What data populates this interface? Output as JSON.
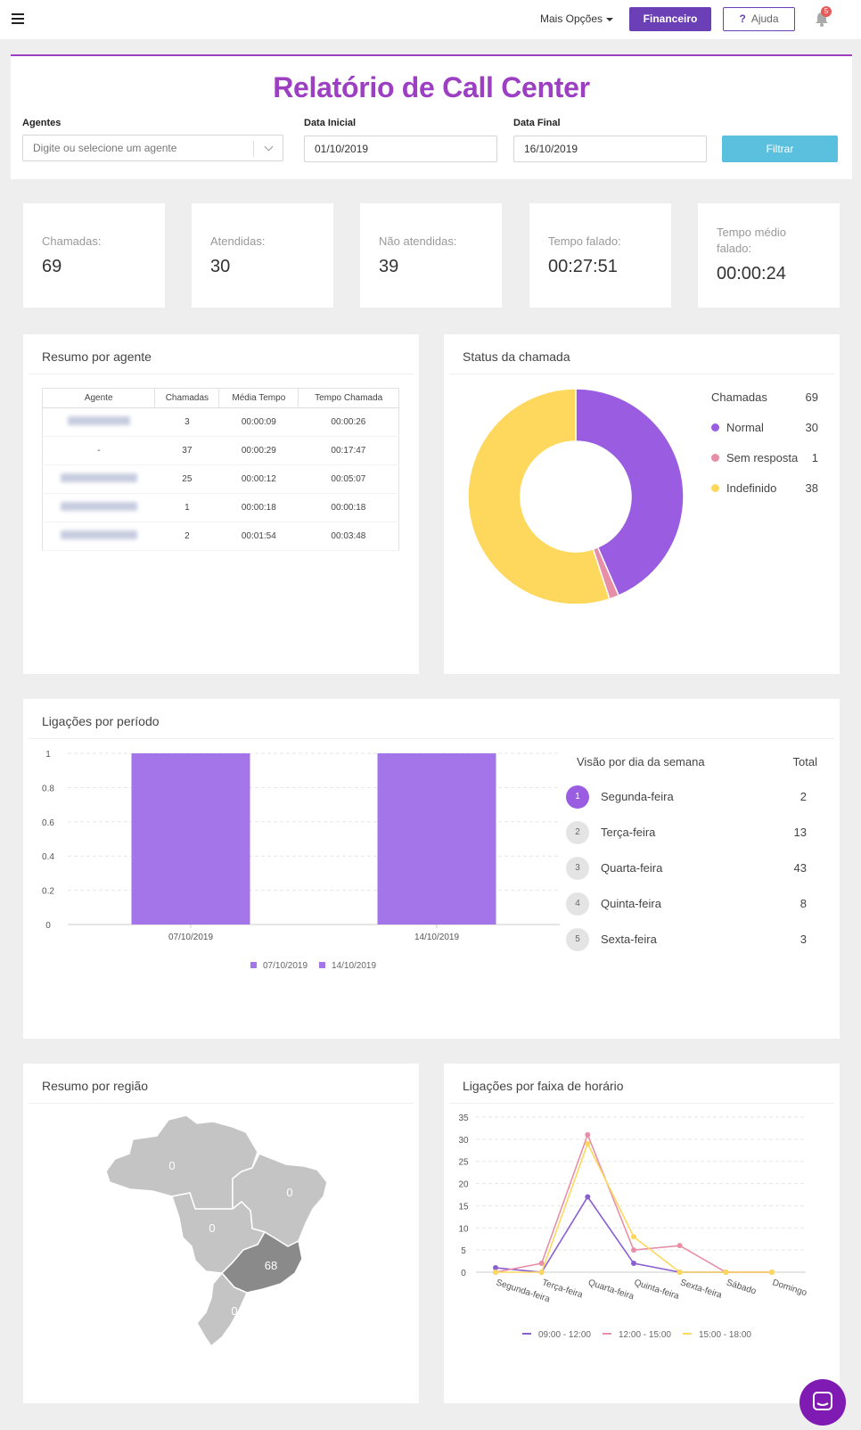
{
  "topbar": {
    "more_options": "Mais Opções",
    "financeiro": "Financeiro",
    "ajuda_icon": "?",
    "ajuda": "Ajuda",
    "notif_count": "5"
  },
  "filters": {
    "title": "Relatório de Call Center",
    "agents_label": "Agentes",
    "agents_placeholder": "Digite ou selecione um agente",
    "start_label": "Data Inicial",
    "start_value": "01/10/2019",
    "end_label": "Data Final",
    "end_value": "16/10/2019",
    "filter_button": "Filtrar"
  },
  "stats": [
    {
      "label": "Chamadas:",
      "value": "69"
    },
    {
      "label": "Atendidas:",
      "value": "30"
    },
    {
      "label": "Não atendidas:",
      "value": "39"
    },
    {
      "label": "Tempo falado:",
      "value": "00:27:51"
    },
    {
      "label": "Tempo médio falado:",
      "value": "00:00:24"
    }
  ],
  "agents_panel": {
    "title": "Resumo por agente",
    "headers": [
      "Agente",
      "Chamadas",
      "Média Tempo",
      "Tempo Chamada"
    ],
    "rows": [
      {
        "agent": "",
        "calls": "3",
        "avg": "00:00:09",
        "total": "00:00:26"
      },
      {
        "agent": "-",
        "calls": "37",
        "avg": "00:00:29",
        "total": "00:17:47"
      },
      {
        "agent": "",
        "calls": "25",
        "avg": "00:00:12",
        "total": "00:05:07"
      },
      {
        "agent": "",
        "calls": "1",
        "avg": "00:00:18",
        "total": "00:00:18"
      },
      {
        "agent": "",
        "calls": "2",
        "avg": "00:01:54",
        "total": "00:03:48"
      }
    ]
  },
  "status_panel": {
    "title": "Status da chamada",
    "legend_header": "Chamadas",
    "legend_total": "69",
    "legend": [
      {
        "label": "Normal",
        "value": "30",
        "color": "#9a5ce0"
      },
      {
        "label": "Sem resposta",
        "value": "1",
        "color": "#e88fa8"
      },
      {
        "label": "Indefinido",
        "value": "38",
        "color": "#fdd85d"
      }
    ]
  },
  "period_panel": {
    "title": "Ligações por período",
    "days_header": "Visão por dia da semana",
    "total_header": "Total",
    "days": [
      {
        "num": "1",
        "name": "Segunda-feira",
        "total": "2"
      },
      {
        "num": "2",
        "name": "Terça-feira",
        "total": "13"
      },
      {
        "num": "3",
        "name": "Quarta-feira",
        "total": "43"
      },
      {
        "num": "4",
        "name": "Quinta-feira",
        "total": "8"
      },
      {
        "num": "5",
        "name": "Sexta-feira",
        "total": "3"
      }
    ]
  },
  "region_panel": {
    "title": "Resumo por região",
    "regions": [
      {
        "name": "Norte",
        "value": "0"
      },
      {
        "name": "Nordeste",
        "value": "0"
      },
      {
        "name": "Centro-Oeste",
        "value": "0"
      },
      {
        "name": "Sudeste",
        "value": "68"
      },
      {
        "name": "Sul",
        "value": "0"
      }
    ]
  },
  "hours_panel": {
    "title": "Ligações por faixa de horário"
  },
  "chart_data": [
    {
      "type": "pie",
      "labels": [
        "Normal",
        "Sem resposta",
        "Indefinido"
      ],
      "values": [
        30,
        1,
        38
      ],
      "colors": [
        "#9a5ce0",
        "#e88fa8",
        "#fdd85d"
      ],
      "donut": true
    },
    {
      "type": "bar",
      "categories": [
        "07/10/2019",
        "14/10/2019"
      ],
      "series": [
        {
          "name": "07/10/2019",
          "values": [
            1,
            null
          ]
        },
        {
          "name": "14/10/2019",
          "values": [
            null,
            1
          ]
        }
      ],
      "color": "#a475e8",
      "yticks": [
        "0",
        "0.2",
        "0.4",
        "0.6",
        "0.8",
        "1"
      ],
      "ylim": [
        0,
        1
      ],
      "grid": true,
      "legend": "bottom"
    },
    {
      "type": "line",
      "categories": [
        "Segunda-feira",
        "Terça-feira",
        "Quarta-feira",
        "Quinta-feira",
        "Sexta-feira",
        "Sábado",
        "Domingo"
      ],
      "series": [
        {
          "name": "09:00 - 12:00",
          "color": "#8a5fd1",
          "values": [
            1,
            0,
            17,
            2,
            0,
            0,
            0
          ]
        },
        {
          "name": "12:00 - 15:00",
          "color": "#e88fa8",
          "values": [
            0,
            2,
            31,
            5,
            6,
            0,
            0
          ]
        },
        {
          "name": "15:00 - 18:00",
          "color": "#fdd85d",
          "values": [
            0,
            0,
            29,
            8,
            0,
            0,
            0
          ]
        }
      ],
      "yticks": [
        "0",
        "5",
        "10",
        "15",
        "20",
        "25",
        "30",
        "35"
      ],
      "ylim": [
        0,
        35
      ],
      "grid": true,
      "legend": "bottom"
    }
  ]
}
